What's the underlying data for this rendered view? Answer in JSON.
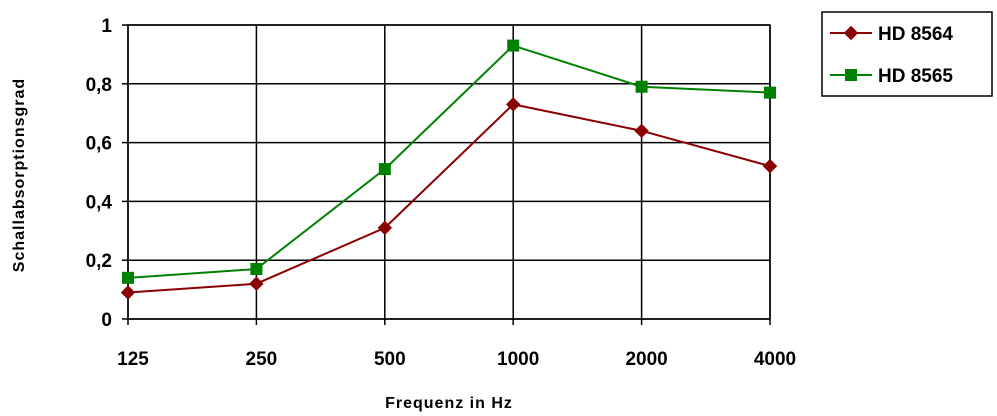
{
  "chart_data": {
    "type": "line",
    "categories": [
      "125",
      "250",
      "500",
      "1000",
      "2000",
      "4000"
    ],
    "series": [
      {
        "name": "HD 8564",
        "color": "#8b0000",
        "marker": "diamond",
        "values": [
          0.09,
          0.12,
          0.31,
          0.73,
          0.64,
          0.52
        ]
      },
      {
        "name": "HD 8565",
        "color": "#008000",
        "marker": "square",
        "values": [
          0.14,
          0.17,
          0.51,
          0.93,
          0.79,
          0.77
        ]
      }
    ],
    "ylim": [
      0,
      1
    ],
    "yticks": [
      0,
      0.2,
      0.4,
      0.6,
      0.8,
      1
    ],
    "ytick_labels": [
      "0",
      "0,2",
      "0,4",
      "0,6",
      "0,8",
      "1"
    ],
    "xlabel": "Frequenz in Hz",
    "ylabel": "Schallabsorptionsgrad",
    "grid": true,
    "legend": "right"
  }
}
